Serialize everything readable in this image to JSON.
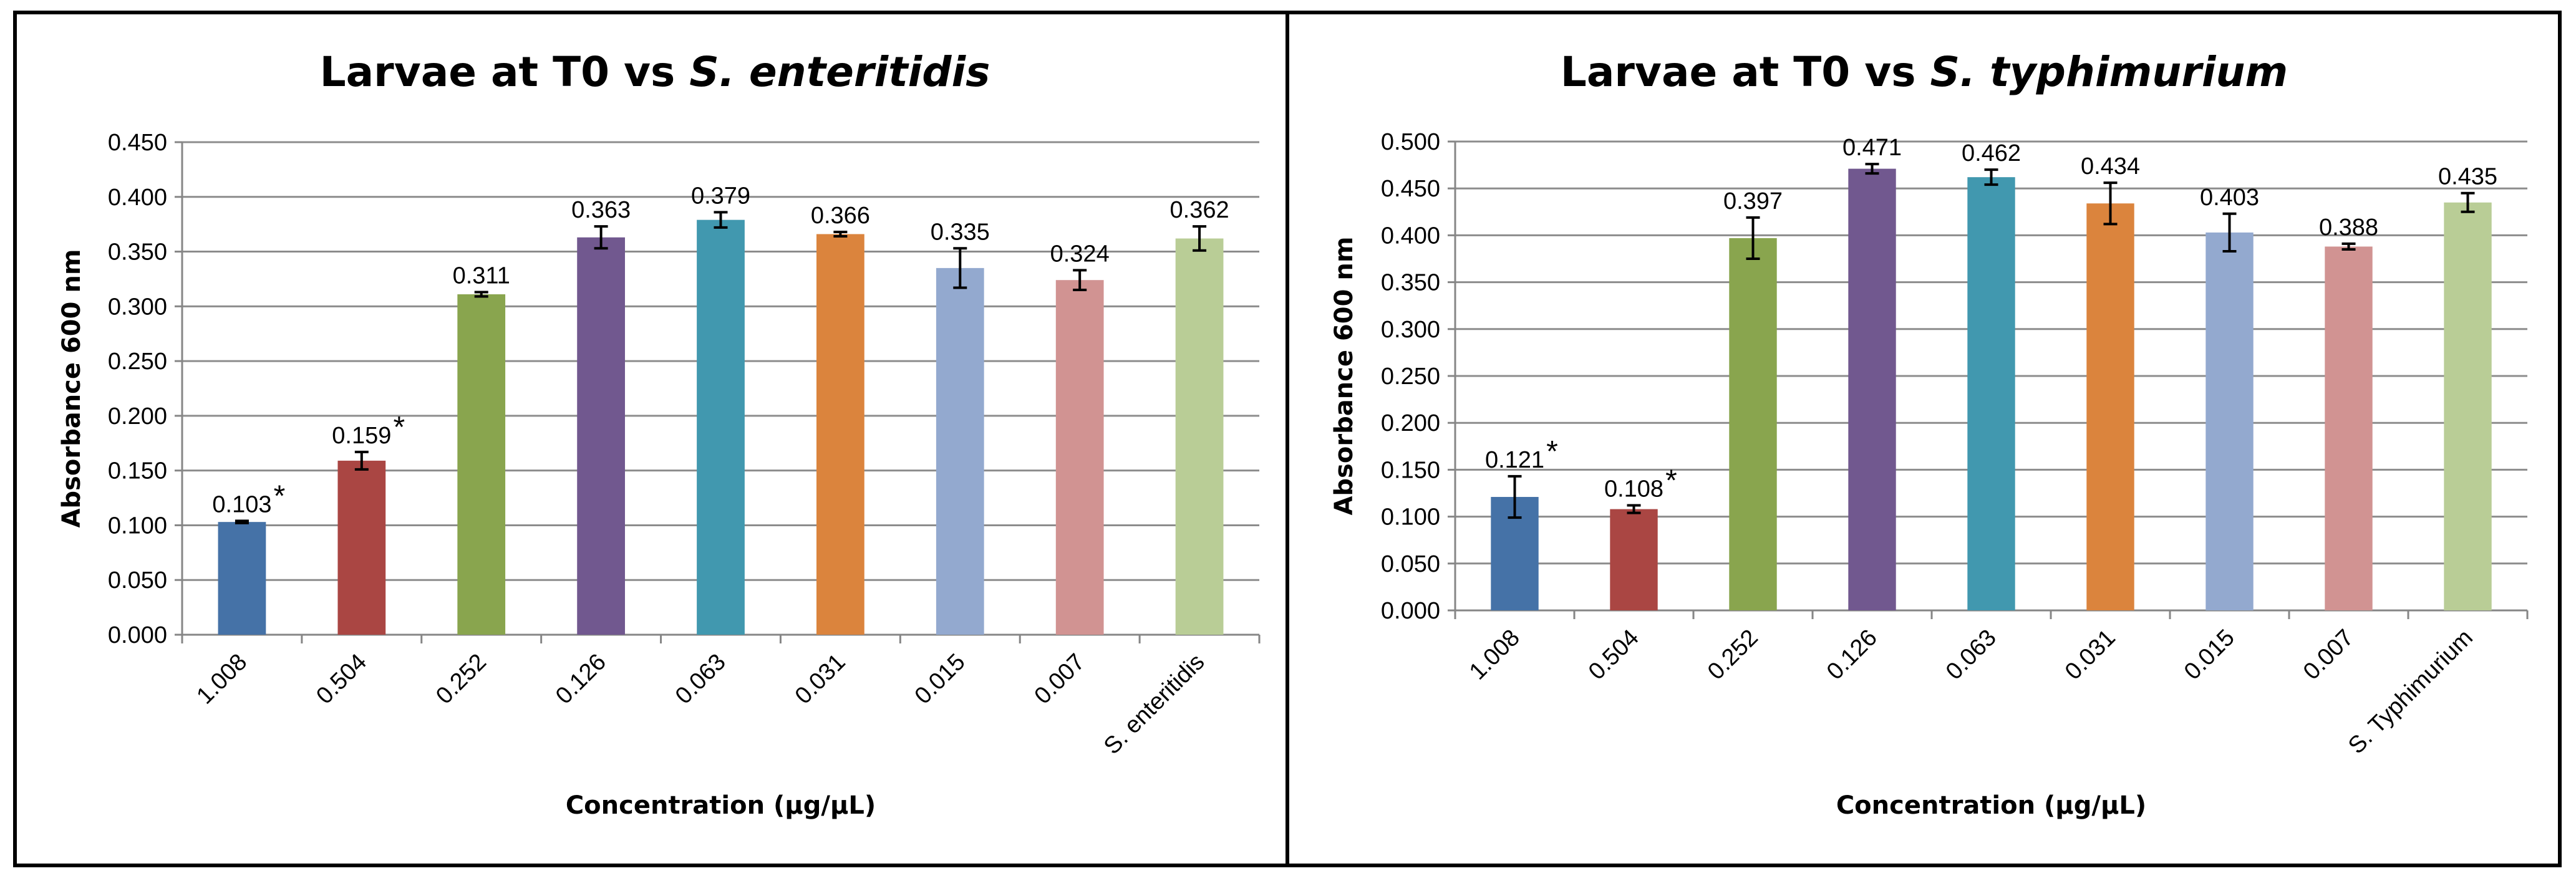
{
  "chart_data": [
    {
      "type": "bar",
      "title_plain": "Larvae at T0 vs ",
      "title_italic": "S. enteritidis",
      "xlabel": "Concentration (µg/µL)",
      "ylabel": "Absorbance 600 nm",
      "ylim": [
        0,
        0.45
      ],
      "ystep": 0.05,
      "ytick_labels": [
        "0.000",
        "0.050",
        "0.100",
        "0.150",
        "0.200",
        "0.250",
        "0.300",
        "0.350",
        "0.400",
        "0.450"
      ],
      "categories": [
        "1.008",
        "0.504",
        "0.252",
        "0.126",
        "0.063",
        "0.031",
        "0.015",
        "0.007",
        "S. enteritidis"
      ],
      "values": [
        0.103,
        0.159,
        0.311,
        0.363,
        0.379,
        0.366,
        0.335,
        0.324,
        0.362
      ],
      "value_labels": [
        "0.103",
        "0.159",
        "0.311",
        "0.363",
        "0.379",
        "0.366",
        "0.335",
        "0.324",
        "0.362"
      ],
      "errors": [
        0.001,
        0.008,
        0.002,
        0.01,
        0.007,
        0.002,
        0.018,
        0.009,
        0.011
      ],
      "significance": [
        "*",
        "*",
        "",
        "",
        "",
        "",
        "",
        "",
        ""
      ],
      "grid": true
    },
    {
      "type": "bar",
      "title_plain": "Larvae at T0 vs ",
      "title_italic": "S. typhimurium",
      "xlabel": "Concentration (µg/µL)",
      "ylabel": "Absorbance 600 nm",
      "ylim": [
        0,
        0.5
      ],
      "ystep": 0.05,
      "ytick_labels": [
        "0.000",
        "0.050",
        "0.100",
        "0.150",
        "0.200",
        "0.250",
        "0.300",
        "0.350",
        "0.400",
        "0.450",
        "0.500"
      ],
      "categories": [
        "1.008",
        "0.504",
        "0.252",
        "0.126",
        "0.063",
        "0.031",
        "0.015",
        "0.007",
        "S. Typhimurium"
      ],
      "values": [
        0.121,
        0.108,
        0.397,
        0.471,
        0.462,
        0.434,
        0.403,
        0.388,
        0.435
      ],
      "value_labels": [
        "0.121",
        "0.108",
        "0.397",
        "0.471",
        "0.462",
        "0.434",
        "0.403",
        "0.388",
        "0.435"
      ],
      "errors": [
        0.022,
        0.004,
        0.022,
        0.005,
        0.008,
        0.022,
        0.02,
        0.003,
        0.01
      ],
      "significance": [
        "*",
        "*",
        "",
        "",
        "",
        "",
        "",
        "",
        ""
      ],
      "grid": true
    }
  ],
  "colors": {
    "bars": [
      "#4572a7",
      "#aa4643",
      "#89a54e",
      "#71588f",
      "#4198af",
      "#db843d",
      "#93a9cf",
      "#d19392",
      "#b9cd96"
    ],
    "gridline": "#8c8c8c",
    "axis": "#868686",
    "border": "#000000",
    "text": "#000000"
  }
}
